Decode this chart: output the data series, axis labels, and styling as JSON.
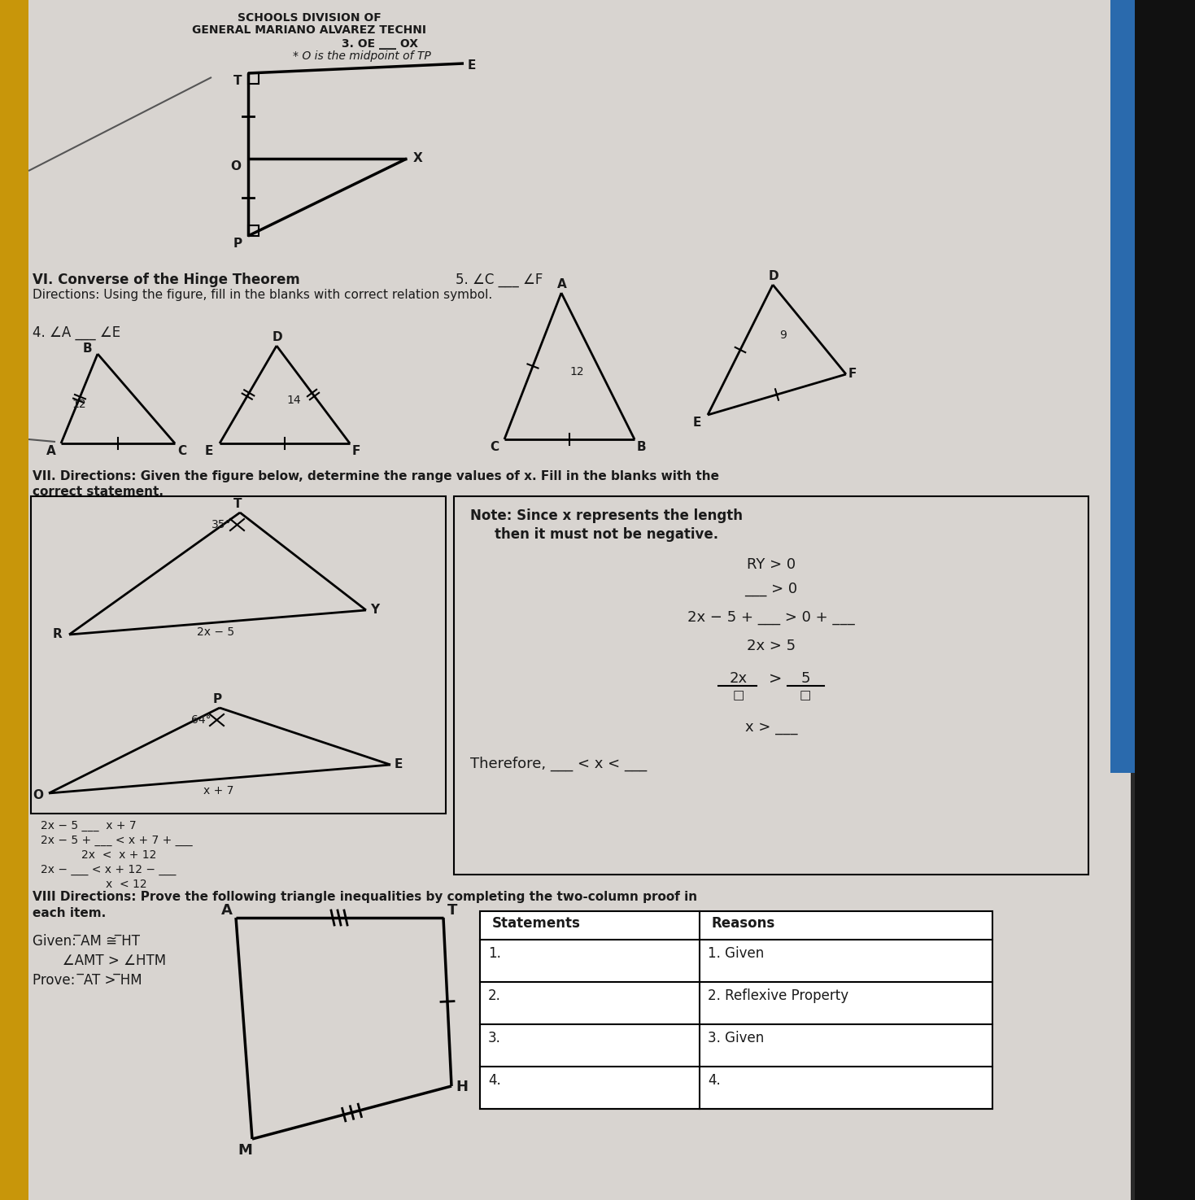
{
  "bg_color": "#2a2a2a",
  "paper_color": "#d8d4d0",
  "yellow_color": "#c8960a",
  "blue_color": "#2a6aad",
  "text_color": "#1a1a1a",
  "title1": "SCHOOLS DIVISION OF",
  "title2": "GENERAL MARIANO ALVAREZ TECHNI",
  "header3": "3. OE ___ OX",
  "header4": "* O is the midpoint of TP",
  "section_vi_title": "VI. Converse of the Hinge Theorem",
  "section_vi_dir": "Directions: Using the figure, fill in the blanks with correct relation symbol.",
  "item4": "4. ∠A ___ ∠E",
  "item5": "5. ∠C ___ ∠F",
  "section_vii": "VII. Directions: Given the figure below, determine the range values of x. Fill in the blanks with the",
  "correct_stmt": "correct statement.",
  "note1": "Note: Since x represents the length",
  "note2": "then it must not be negative.",
  "ry": "RY > 0",
  "blank_gt0": "___ > 0",
  "line3": "2x − 5 + ___ > 0 + ___",
  "line4": "2x > 5",
  "line5_a": "2x",
  "line5_b": "5",
  "line6": "x > ___",
  "therefore": "Therefore, ___ < x < ___",
  "wl1": "2x − 5 ___ x + 7",
  "wl2": "2x − 5 + ___ < x + 7 + ___",
  "wl3": "2x < x + 12",
  "wl4": "2x − ___ < x + 12 − ___",
  "wl5": "x < 12",
  "s8_title": "VIII Directions: Prove the following triangle inequalities by completing the two-column proof in",
  "s8_sub": "each item.",
  "given1": "Given: ̅AM ≅ ̅HT",
  "given2": "       ∠AMT > ∠HTM",
  "prove": "Prove:  ̅AT > ̅HM",
  "th_stmts": [
    "Statements",
    "Reasons"
  ],
  "th_rows": [
    [
      "1.",
      "1. Given"
    ],
    [
      "2.",
      "2. Reflexive Property"
    ],
    [
      "3.",
      "3. Given"
    ],
    [
      "4.",
      "4."
    ]
  ]
}
